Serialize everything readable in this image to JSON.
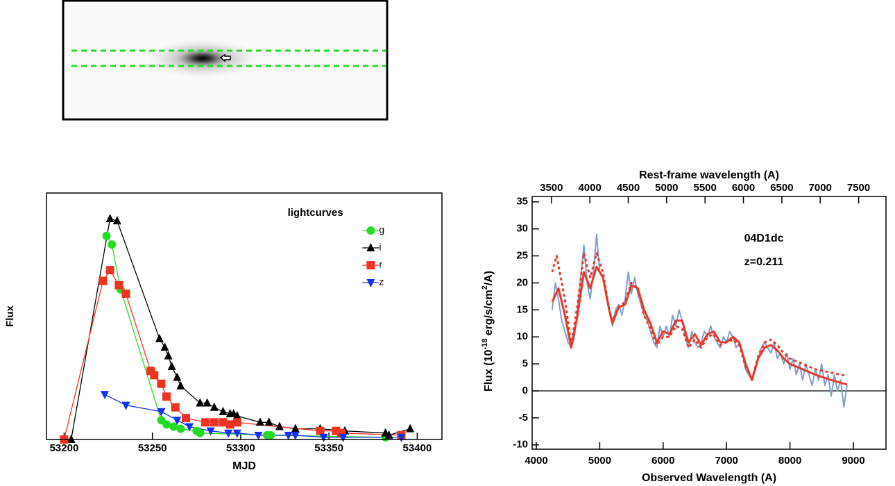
{
  "chart_data": [
    {
      "type": "scatter",
      "title": "lightcurves",
      "x_label": "MJD",
      "y_label": "Flux",
      "xlim": [
        53190,
        53414
      ],
      "xticks": [
        53200,
        53250,
        53300,
        53350,
        53400
      ],
      "ylim": [
        0,
        1.15
      ],
      "legend": "upper right",
      "series": [
        {
          "name": "g",
          "color": "#22dd22",
          "marker": "circle",
          "x": [
            53224,
            53227,
            53232,
            53255,
            53258,
            53262,
            53266,
            53275,
            53277,
            53315,
            53317,
            53382
          ],
          "values": [
            0.95,
            0.91,
            0.7,
            0.09,
            0.07,
            0.06,
            0.05,
            0.04,
            0.03,
            0.02,
            0.02,
            0.01
          ]
        },
        {
          "name": "i",
          "color": "#000000",
          "marker": "triangle",
          "x": [
            53204,
            53226,
            53230,
            53254,
            53257,
            53259,
            53261,
            53264,
            53266,
            53277,
            53281,
            53285,
            53290,
            53294,
            53296,
            53298,
            53311,
            53316,
            53322,
            53331,
            53345,
            53359,
            53382,
            53384,
            53396
          ],
          "values": [
            0,
            1.03,
            1.02,
            0.47,
            0.43,
            0.39,
            0.34,
            0.29,
            0.25,
            0.17,
            0.17,
            0.15,
            0.13,
            0.12,
            0.12,
            0.11,
            0.08,
            0.08,
            0.06,
            0.05,
            0.05,
            0.04,
            0.03,
            0.02,
            0.05
          ]
        },
        {
          "name": "r",
          "color": "#ee3322",
          "marker": "square",
          "x": [
            53200,
            53222,
            53226,
            53231,
            53235,
            53249,
            53251,
            53255,
            53258,
            53263,
            53269,
            53280,
            53285,
            53290,
            53294,
            53298,
            53345,
            53354,
            53357,
            53391
          ],
          "values": [
            0,
            0.74,
            0.79,
            0.72,
            0.68,
            0.32,
            0.3,
            0.26,
            0.2,
            0.15,
            0.1,
            0.08,
            0.08,
            0.08,
            0.07,
            0.08,
            0.04,
            0.04,
            0.03,
            0.02
          ]
        },
        {
          "name": "z",
          "color": "#1133ee",
          "marker": "triangle-down",
          "x": [
            53223,
            53235,
            53255,
            53264,
            53271,
            53283,
            53293,
            53298,
            53310,
            53327,
            53331,
            53347,
            53358,
            53391
          ],
          "values": [
            0.21,
            0.16,
            0.13,
            0.09,
            0.06,
            0.04,
            0.03,
            0.03,
            0.02,
            0.02,
            0.02,
            0.01,
            0.01,
            0.01
          ]
        }
      ]
    },
    {
      "type": "line",
      "x_label": "Observed Wavelength (A)",
      "x2_label": "Rest-frame wavelength (A)",
      "y_label_parts": [
        "Flux (10",
        "-18",
        " erg/s/cm",
        "2",
        "/A)"
      ],
      "annotations": [
        "04D1dc",
        "z=0.211"
      ],
      "xlim": [
        3934,
        9514
      ],
      "xticks": [
        4000,
        5000,
        6000,
        7000,
        8000,
        9000
      ],
      "x2lim": [
        3248.6,
        7856.3
      ],
      "x2ticks": [
        3500,
        4000,
        4500,
        5000,
        5500,
        6000,
        6500,
        7000,
        7500
      ],
      "ylim": [
        -10.8,
        36
      ],
      "yticks": [
        -10,
        -5,
        0,
        5,
        10,
        15,
        20,
        25,
        30,
        35
      ],
      "zero_line": true,
      "series": [
        {
          "color": "#7f9fd0",
          "line_style": "solid",
          "width": 2,
          "x": [
            4250,
            4300,
            4350,
            4400,
            4450,
            4500,
            4550,
            4600,
            4650,
            4700,
            4750,
            4800,
            4850,
            4900,
            4950,
            5000,
            5050,
            5100,
            5150,
            5200,
            5250,
            5300,
            5350,
            5400,
            5450,
            5500,
            5550,
            5600,
            5650,
            5700,
            5750,
            5800,
            5850,
            5900,
            5950,
            6000,
            6050,
            6100,
            6150,
            6200,
            6250,
            6300,
            6350,
            6400,
            6450,
            6500,
            6550,
            6600,
            6650,
            6700,
            6750,
            6800,
            6850,
            6900,
            6950,
            7000,
            7050,
            7100,
            7150,
            7200,
            7250,
            7300,
            7350,
            7400,
            7450,
            7500,
            7550,
            7600,
            7650,
            7700,
            7750,
            7800,
            7850,
            7900,
            7950,
            8000,
            8050,
            8100,
            8150,
            8200,
            8250,
            8300,
            8350,
            8400,
            8450,
            8500,
            8550,
            8600,
            8650,
            8700,
            8750,
            8800,
            8850,
            8900
          ],
          "values": [
            15,
            20,
            17,
            13,
            11,
            9,
            8,
            10,
            15,
            21,
            27,
            20,
            17,
            22,
            29,
            22,
            21,
            18,
            15,
            12,
            15,
            16,
            14,
            17,
            22,
            18,
            21,
            18,
            16,
            14,
            13,
            11,
            9,
            8,
            12,
            10,
            12,
            10,
            14,
            12,
            15,
            13,
            10,
            8,
            11,
            9,
            8,
            9,
            11,
            10,
            12,
            10,
            9,
            8,
            10,
            9,
            11,
            10,
            8,
            9,
            7,
            4,
            3,
            2,
            4,
            6,
            8,
            9,
            8,
            7,
            9,
            6,
            7,
            5,
            7,
            4,
            6,
            3,
            5,
            2,
            5,
            3,
            1,
            4,
            2,
            5,
            1,
            3,
            -1,
            3,
            0,
            2,
            -3,
            1
          ]
        },
        {
          "color": "#e8392a",
          "line_style": "dotted",
          "width": 3,
          "x": [
            4250,
            4320,
            4450,
            4550,
            4650,
            4750,
            4850,
            4950,
            5050,
            5150,
            5200,
            5300,
            5400,
            5500,
            5600,
            5700,
            5800,
            5900,
            6000,
            6100,
            6200,
            6300,
            6400,
            6500,
            6600,
            6700,
            6800,
            6900,
            7000,
            7100,
            7200,
            7300,
            7400,
            7500,
            7600,
            7700,
            7800,
            7900,
            8000,
            8200,
            8400,
            8600,
            8800,
            8900
          ],
          "values": [
            22,
            25,
            17,
            8.5,
            16,
            25.5,
            21,
            25.5,
            22,
            15,
            13,
            15.5,
            16.5,
            20,
            19,
            14,
            11.5,
            8.5,
            10,
            10,
            12,
            11.5,
            8,
            9.5,
            8,
            10,
            10.5,
            8.5,
            9,
            9.5,
            8.5,
            4.5,
            2,
            6.5,
            9,
            9.5,
            8.5,
            7,
            6,
            5,
            4,
            3.5,
            3,
            2.8
          ]
        },
        {
          "color": "#e8392a",
          "line_style": "solid",
          "width": 3,
          "x": [
            4250,
            4350,
            4450,
            4550,
            4650,
            4750,
            4850,
            4950,
            5050,
            5150,
            5200,
            5300,
            5400,
            5500,
            5600,
            5700,
            5800,
            5900,
            6000,
            6100,
            6200,
            6300,
            6400,
            6500,
            6600,
            6700,
            6800,
            6900,
            7000,
            7100,
            7200,
            7300,
            7400,
            7500,
            7600,
            7700,
            7800,
            7900,
            8000,
            8200,
            8400,
            8600,
            8800,
            8900
          ],
          "values": [
            16.5,
            19,
            14,
            8,
            14,
            22,
            19,
            23,
            21,
            15,
            12.5,
            15.5,
            16,
            19.5,
            19,
            15,
            12.5,
            9,
            11,
            10.5,
            13,
            13,
            9,
            10.5,
            8.5,
            10.5,
            11,
            9,
            9,
            10,
            9,
            5,
            2,
            6,
            8,
            8.5,
            7.5,
            6,
            5,
            4,
            3,
            2.2,
            1.5,
            1.2
          ]
        }
      ]
    }
  ]
}
